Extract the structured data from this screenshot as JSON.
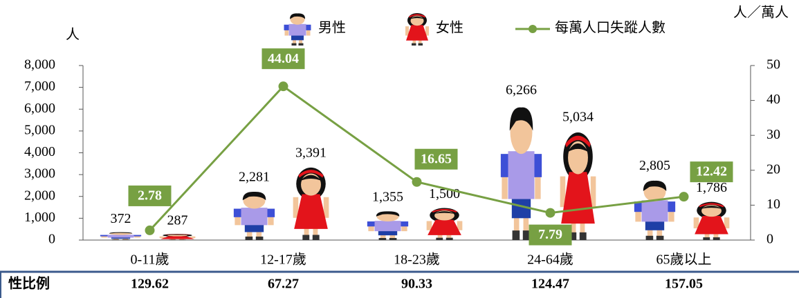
{
  "chart_data": {
    "type": "pictogram_bar_line",
    "y_axis_label": "人",
    "y2_axis_label": "人／萬人",
    "categories": [
      "0-11歲",
      "12-17歲",
      "18-23歲",
      "24-64歲",
      "65歲以上"
    ],
    "series": [
      {
        "name": "男性",
        "type": "boy",
        "values": [
          372,
          2281,
          1355,
          6266,
          2805
        ],
        "value_labels": [
          "372",
          "2,281",
          "1,355",
          "6,266",
          "2,805"
        ]
      },
      {
        "name": "女性",
        "type": "girl",
        "values": [
          287,
          3391,
          1500,
          5034,
          1786
        ],
        "value_labels": [
          "287",
          "3,391",
          "1,500",
          "5,034",
          "1,786"
        ]
      },
      {
        "name": "每萬人口失蹤人數",
        "type": "line",
        "axis": "y2",
        "color": "#77a043",
        "values": [
          2.78,
          44.04,
          16.65,
          7.79,
          12.42
        ]
      }
    ],
    "ylim": [
      0,
      8000
    ],
    "yticks": [
      0,
      {
        "value": 1000,
        "label": "1,000"
      },
      {
        "value": 2000,
        "label": "2,000"
      },
      {
        "value": 3000,
        "label": "3,000"
      },
      {
        "value": 4000,
        "label": "4,000"
      },
      {
        "value": 5000,
        "label": "5,000"
      },
      {
        "value": 6000,
        "label": "6,000"
      },
      {
        "value": 7000,
        "label": "7,000"
      },
      {
        "value": 8000,
        "label": "8,000"
      }
    ],
    "y2lim": [
      0,
      50
    ],
    "y2ticks": [
      0,
      10,
      20,
      30,
      40,
      50
    ]
  },
  "table": {
    "header": "性比例",
    "values": [
      129.62,
      67.27,
      90.33,
      124.47,
      157.05
    ]
  }
}
